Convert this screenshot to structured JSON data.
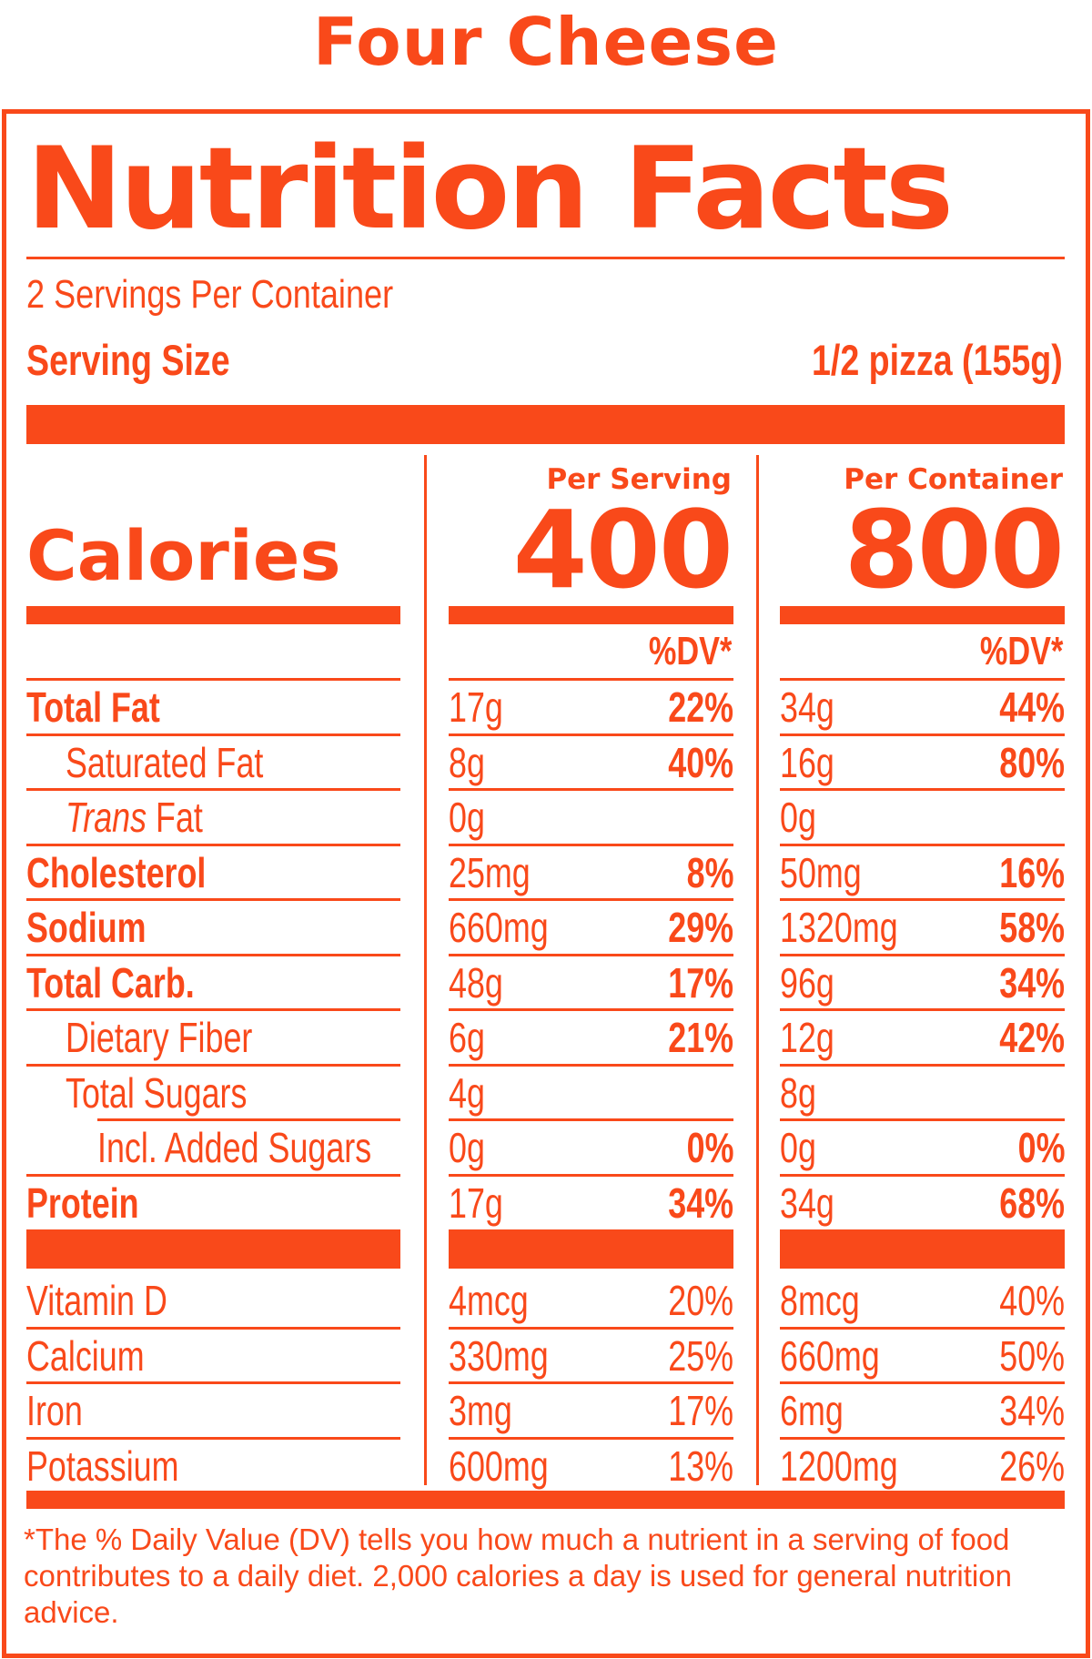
{
  "product_name": "Four Cheese",
  "panel": {
    "title": "Nutrition Facts",
    "servings_per_container": "2 Servings Per Container",
    "serving_size_label": "Serving Size",
    "serving_size_value": "1/2 pizza (155g)"
  },
  "calories": {
    "label": "Calories",
    "per_serving_header": "Per Serving",
    "per_container_header": "Per Container",
    "per_serving_value": "400",
    "per_container_value": "800",
    "dv_header": "%DV*"
  },
  "nutrients": [
    {
      "name": "Total Fat",
      "style": "bold",
      "indent": 0,
      "serving_amount": "17g",
      "serving_dv": "22%",
      "container_amount": "34g",
      "container_dv": "44%"
    },
    {
      "name": "Saturated Fat",
      "style": "normal",
      "indent": 1,
      "serving_amount": "8g",
      "serving_dv": "40%",
      "container_amount": "16g",
      "container_dv": "80%"
    },
    {
      "name_italic": "Trans",
      "name_rest": " Fat",
      "style": "trans",
      "indent": 1,
      "serving_amount": "0g",
      "serving_dv": "",
      "container_amount": "0g",
      "container_dv": ""
    },
    {
      "name": "Cholesterol",
      "style": "bold",
      "indent": 0,
      "serving_amount": "25mg",
      "serving_dv": "8%",
      "container_amount": "50mg",
      "container_dv": "16%"
    },
    {
      "name": "Sodium",
      "style": "bold",
      "indent": 0,
      "serving_amount": "660mg",
      "serving_dv": "29%",
      "container_amount": "1320mg",
      "container_dv": "58%"
    },
    {
      "name": "Total Carb.",
      "style": "bold",
      "indent": 0,
      "serving_amount": "48g",
      "serving_dv": "17%",
      "container_amount": "96g",
      "container_dv": "34%"
    },
    {
      "name": "Dietary Fiber",
      "style": "normal",
      "indent": 1,
      "serving_amount": "6g",
      "serving_dv": "21%",
      "container_amount": "12g",
      "container_dv": "42%"
    },
    {
      "name": "Total Sugars",
      "style": "normal",
      "indent": 1,
      "serving_amount": "4g",
      "serving_dv": "",
      "container_amount": "8g",
      "container_dv": ""
    },
    {
      "name": "Incl. Added Sugars",
      "style": "normal",
      "indent": 2,
      "serving_amount": "0g",
      "serving_dv": "0%",
      "container_amount": "0g",
      "container_dv": "0%"
    },
    {
      "name": "Protein",
      "style": "bold",
      "indent": 0,
      "serving_amount": "17g",
      "serving_dv": "34%",
      "container_amount": "34g",
      "container_dv": "68%"
    }
  ],
  "vitamins": [
    {
      "name": "Vitamin D",
      "serving_amount": "4mcg",
      "serving_dv": "20%",
      "container_amount": "8mcg",
      "container_dv": "40%"
    },
    {
      "name": "Calcium",
      "serving_amount": "330mg",
      "serving_dv": "25%",
      "container_amount": "660mg",
      "container_dv": "50%"
    },
    {
      "name": "Iron",
      "serving_amount": "3mg",
      "serving_dv": "17%",
      "container_amount": "6mg",
      "container_dv": "34%"
    },
    {
      "name": "Potassium",
      "serving_amount": "600mg",
      "serving_dv": "13%",
      "container_amount": "1200mg",
      "container_dv": "26%"
    }
  ],
  "footnote": "*The % Daily Value (DV) tells you how much a nutrient in a serving of food contributes to a daily diet. 2,000 calories a day is used for general nutrition advice.",
  "colors": {
    "label_orange": "#f9491a",
    "background": "#ffffff"
  }
}
